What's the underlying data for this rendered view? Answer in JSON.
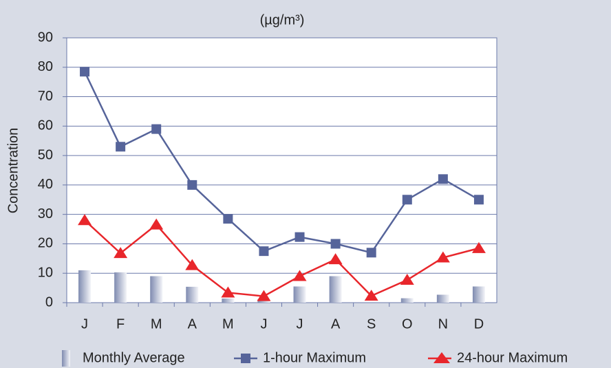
{
  "chart_data": {
    "type": "combo",
    "title": "(µg/m³)",
    "y_label": "Concentration",
    "categories": [
      "J",
      "F",
      "M",
      "A",
      "M",
      "J",
      "J",
      "A",
      "S",
      "O",
      "N",
      "D"
    ],
    "series": [
      {
        "name": "Monthly Average",
        "type": "bar",
        "color": "#8f9ab8",
        "values": [
          11,
          10.3,
          9,
          5.4,
          1.4,
          1.2,
          5.5,
          9,
          0,
          1.5,
          2.7,
          5.5
        ]
      },
      {
        "name": "1-hour Maximum",
        "type": "line",
        "marker": "square",
        "color": "#56649a",
        "values": [
          78.5,
          53,
          59,
          40,
          28.5,
          17.5,
          22.3,
          20,
          17,
          35,
          42,
          35
        ]
      },
      {
        "name": "24-hour Maximum",
        "type": "line",
        "marker": "triangle",
        "color": "#e8262b",
        "values": [
          28,
          16.8,
          26.5,
          12.7,
          3.4,
          2.2,
          9,
          14.7,
          2.3,
          7.7,
          15.3,
          18.5
        ]
      }
    ],
    "ylim": [
      0,
      90
    ],
    "yticks": [
      0,
      10,
      20,
      30,
      40,
      50,
      60,
      70,
      80,
      90
    ],
    "grid": true,
    "legend": "bottom"
  }
}
